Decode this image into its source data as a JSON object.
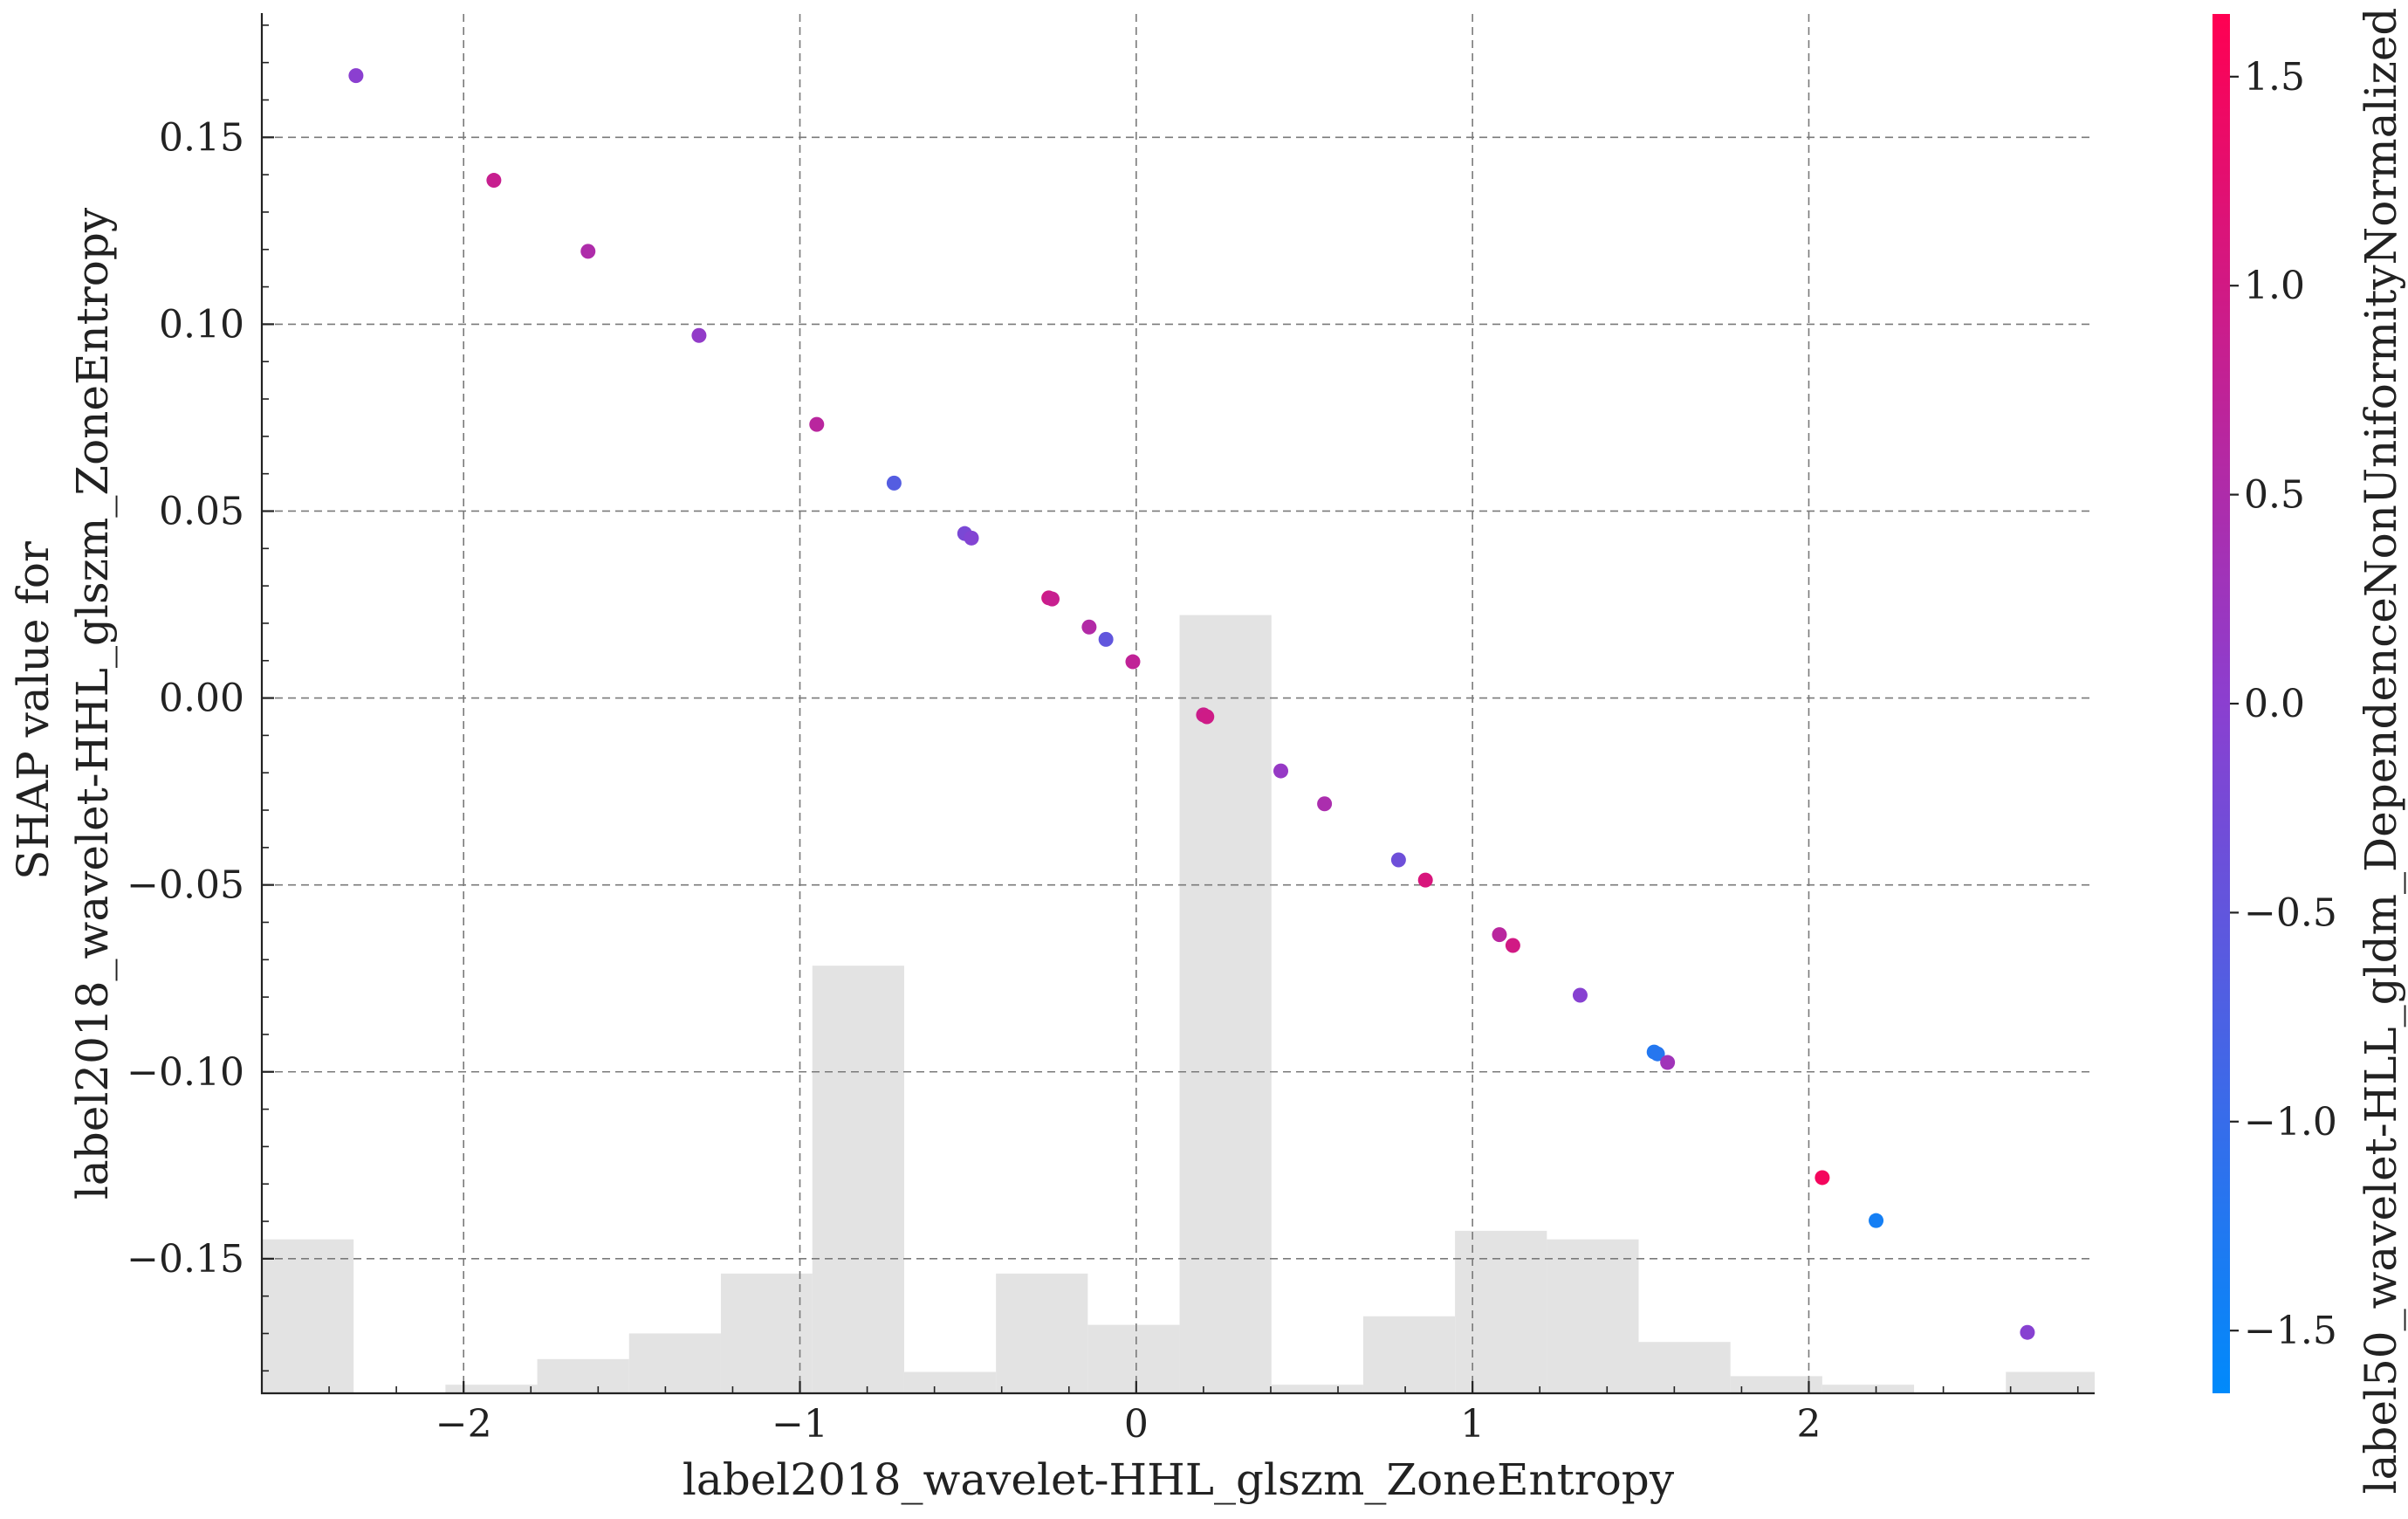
{
  "chart_data": {
    "type": "scatter",
    "xlabel": "label2018_wavelet-HHL_glszm_ZoneEntropy",
    "ylabel_lines": [
      "SHAP value for",
      "label2018_wavelet-HHL_glszm_ZoneEntropy"
    ],
    "colorbar_label": "label50_wavelet-HLL_gldm_DependenceNonUniformityNormalized",
    "xlim": [
      -2.6,
      2.85
    ],
    "ylim": [
      -0.186,
      0.183
    ],
    "x_ticks": [
      -2,
      -1,
      0,
      1,
      2
    ],
    "x_tick_labels": [
      "−2",
      "−1",
      "0",
      "1",
      "2"
    ],
    "y_ticks": [
      0.15,
      0.1,
      0.05,
      0.0,
      -0.05,
      -0.1,
      -0.15
    ],
    "y_tick_labels": [
      "0.15",
      "0.10",
      "0.05",
      "0.00",
      "−0.05",
      "−0.10",
      "−0.15"
    ],
    "colorbar": {
      "range": [
        -1.65,
        1.65
      ],
      "ticks": [
        1.5,
        1.0,
        0.5,
        0.0,
        -0.5,
        -1.0,
        -1.5
      ],
      "tick_labels": [
        "1.5",
        "1.0",
        "0.5",
        "0.0",
        "−0.5",
        "−1.0",
        "−1.5"
      ],
      "color_low": "#008afb",
      "color_mid": "#8b3fd0",
      "color_high": "#ff0052"
    },
    "histogram": {
      "bin_edges": [
        -2.6,
        -2.327,
        -2.054,
        -1.781,
        -1.508,
        -1.235,
        -0.963,
        -0.69,
        -0.417,
        -0.144,
        0.129,
        0.402,
        0.675,
        0.948,
        1.221,
        1.494,
        1.767,
        2.04,
        2.313,
        2.586,
        2.85
      ],
      "relative_heights": [
        0.18,
        0.0,
        0.01,
        0.04,
        0.07,
        0.14,
        0.5,
        0.025,
        0.14,
        0.08,
        0.91,
        0.01,
        0.09,
        0.19,
        0.18,
        0.06,
        0.02,
        0.01,
        0.0,
        0.025
      ]
    },
    "points": [
      {
        "x": -2.32,
        "y": 0.1665,
        "c": 0.0
      },
      {
        "x": -1.91,
        "y": 0.1385,
        "c": 0.85
      },
      {
        "x": -1.63,
        "y": 0.1195,
        "c": 0.5
      },
      {
        "x": -1.3,
        "y": 0.097,
        "c": 0.1
      },
      {
        "x": -0.95,
        "y": 0.0732,
        "c": 0.65
      },
      {
        "x": -0.72,
        "y": 0.0575,
        "c": -0.65
      },
      {
        "x": -0.51,
        "y": 0.044,
        "c": -0.2
      },
      {
        "x": -0.49,
        "y": 0.0428,
        "c": -0.1
      },
      {
        "x": -0.26,
        "y": 0.0268,
        "c": 0.95
      },
      {
        "x": -0.25,
        "y": 0.0265,
        "c": 0.85
      },
      {
        "x": -0.14,
        "y": 0.019,
        "c": 0.55
      },
      {
        "x": -0.09,
        "y": 0.0157,
        "c": -0.5
      },
      {
        "x": -0.01,
        "y": 0.0097,
        "c": 0.75
      },
      {
        "x": 0.2,
        "y": -0.0045,
        "c": 0.9
      },
      {
        "x": 0.21,
        "y": -0.005,
        "c": 0.95
      },
      {
        "x": 0.43,
        "y": -0.0195,
        "c": 0.15
      },
      {
        "x": 0.56,
        "y": -0.0283,
        "c": 0.45
      },
      {
        "x": 0.78,
        "y": -0.0433,
        "c": -0.35
      },
      {
        "x": 0.86,
        "y": -0.0487,
        "c": 1.1
      },
      {
        "x": 1.08,
        "y": -0.0633,
        "c": 0.65
      },
      {
        "x": 1.12,
        "y": -0.0662,
        "c": 1.0
      },
      {
        "x": 1.32,
        "y": -0.0795,
        "c": -0.05
      },
      {
        "x": 1.54,
        "y": -0.0947,
        "c": -1.25
      },
      {
        "x": 1.55,
        "y": -0.0952,
        "c": -1.2
      },
      {
        "x": 1.58,
        "y": -0.0975,
        "c": 0.3
      },
      {
        "x": 2.04,
        "y": -0.1283,
        "c": 1.5
      },
      {
        "x": 2.2,
        "y": -0.1398,
        "c": -1.4
      },
      {
        "x": 2.65,
        "y": -0.1697,
        "c": -0.05
      }
    ]
  }
}
